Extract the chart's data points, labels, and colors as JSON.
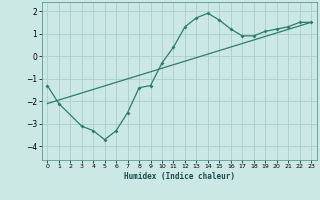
{
  "xlabel": "Humidex (Indice chaleur)",
  "bg_color": "#cce8e5",
  "grid_color": "#aacfcc",
  "line_color": "#2d7d6e",
  "xlim": [
    -0.5,
    23.5
  ],
  "ylim": [
    -4.6,
    2.4
  ],
  "yticks": [
    -4,
    -3,
    -2,
    -1,
    0,
    1,
    2
  ],
  "xticks": [
    0,
    1,
    2,
    3,
    4,
    5,
    6,
    7,
    8,
    9,
    10,
    11,
    12,
    13,
    14,
    15,
    16,
    17,
    18,
    19,
    20,
    21,
    22,
    23
  ],
  "curve_x": [
    0,
    1,
    3,
    4,
    5,
    6,
    7,
    8,
    9,
    10,
    11,
    12,
    13,
    14,
    15,
    16,
    17,
    18,
    19,
    20,
    21,
    22,
    23
  ],
  "curve_y": [
    -1.3,
    -2.1,
    -3.1,
    -3.3,
    -3.7,
    -3.3,
    -2.5,
    -1.4,
    -1.3,
    -0.3,
    0.4,
    1.3,
    1.7,
    1.9,
    1.6,
    1.2,
    0.9,
    0.9,
    1.1,
    1.2,
    1.3,
    1.5,
    1.5
  ],
  "line_x": [
    0,
    23
  ],
  "line_y": [
    -2.1,
    1.5
  ]
}
